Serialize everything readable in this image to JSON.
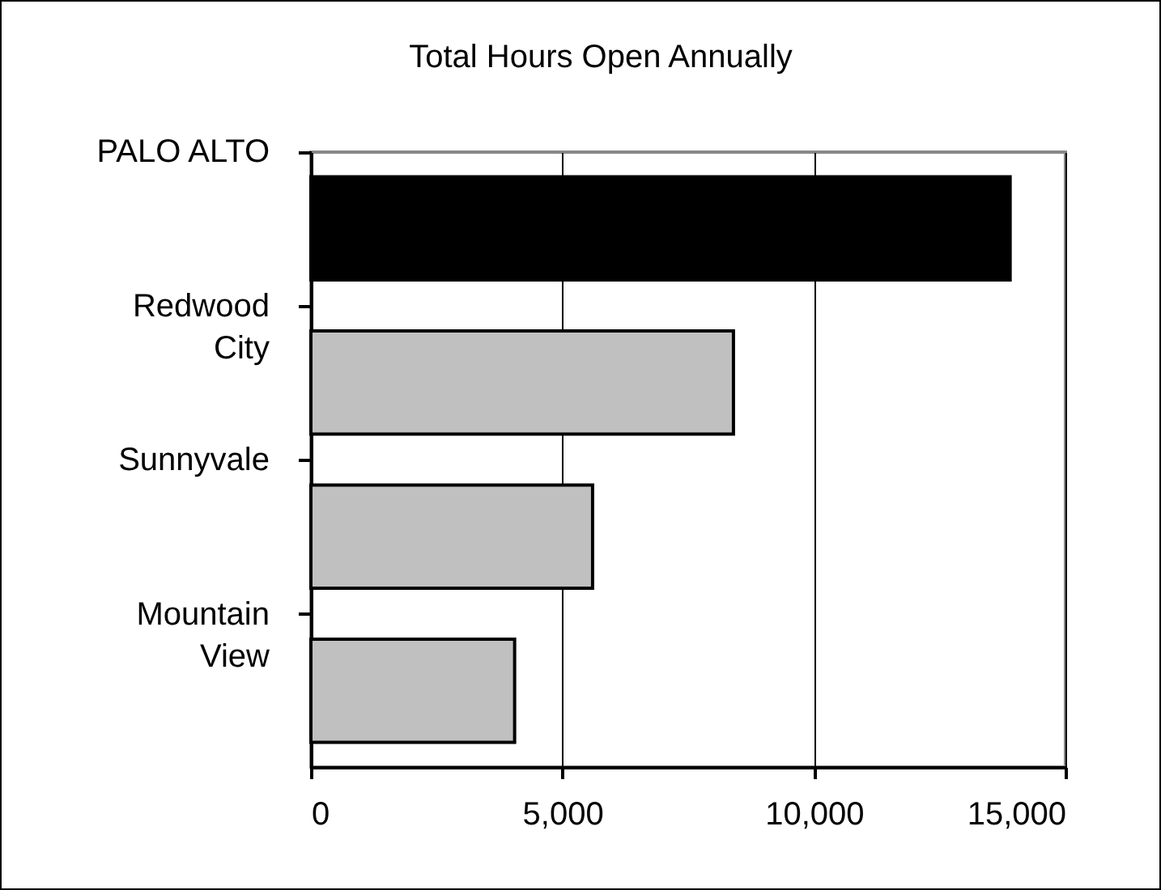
{
  "chart_data": {
    "type": "bar",
    "orientation": "horizontal",
    "title": "Total Hours Open Annually",
    "categories": [
      "PALO ALTO",
      "Redwood City",
      "Sunnyvale",
      "Mountain View"
    ],
    "values": [
      13900,
      8400,
      5600,
      4050
    ],
    "colors": [
      "#000000",
      "#c0c0c0",
      "#c0c0c0",
      "#c0c0c0"
    ],
    "xlim": [
      0,
      15000
    ],
    "xticks": [
      0,
      {
        "value": 5000,
        "label": "5,000"
      },
      {
        "value": 10000,
        "label": "10,000"
      },
      {
        "value": 15000,
        "label": "15,000"
      }
    ],
    "grid": "x",
    "legend": false
  }
}
